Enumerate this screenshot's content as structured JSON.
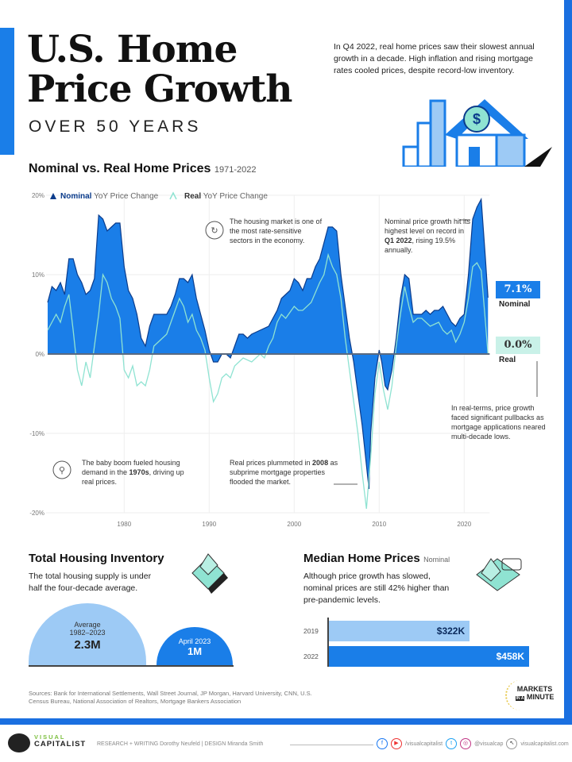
{
  "header": {
    "title_line1": "U.S. Home",
    "title_line2": "Price Growth",
    "subtitle": "OVER 50 YEARS",
    "intro": "In Q4 2022, real home prices saw their slowest annual growth in a decade. High inflation and rising mortgage rates cooled prices, despite record-low inventory."
  },
  "chart_data": {
    "type": "area",
    "title": "Nominal vs. Real Home Prices",
    "subtitle": "1971-2022",
    "xlabel": "",
    "ylabel": "",
    "xlim": [
      1971,
      2023
    ],
    "ylim": [
      -20,
      20
    ],
    "x_ticks": [
      "1980",
      "1990",
      "2000",
      "2010",
      "2020"
    ],
    "y_ticks": [
      "20%",
      "10%",
      "0%",
      "-10%",
      "-20%"
    ],
    "grid": true,
    "legend": [
      {
        "bold": "Nominal",
        "rest": "YoY Price Change"
      },
      {
        "bold": "Real",
        "rest": "YoY Price Change"
      }
    ],
    "legend_position": "top-left",
    "colors": {
      "nominal": "#1a7ee8",
      "nominal_outline": "#0b3c8c",
      "real": "#8fe3d2"
    },
    "series": [
      {
        "name": "Nominal",
        "points": [
          [
            1971,
            6.5
          ],
          [
            1971.5,
            8.5
          ],
          [
            1972,
            8
          ],
          [
            1972.5,
            9
          ],
          [
            1973,
            7.5
          ],
          [
            1973.5,
            12
          ],
          [
            1974,
            12
          ],
          [
            1974.5,
            10
          ],
          [
            1975,
            9
          ],
          [
            1975.5,
            7.5
          ],
          [
            1976,
            8
          ],
          [
            1976.5,
            9.5
          ],
          [
            1977,
            17.5
          ],
          [
            1977.5,
            17
          ],
          [
            1978,
            15.5
          ],
          [
            1978.5,
            16
          ],
          [
            1979,
            16.5
          ],
          [
            1979.5,
            16.5
          ],
          [
            1980,
            11
          ],
          [
            1980.5,
            8
          ],
          [
            1981,
            7
          ],
          [
            1981.5,
            5
          ],
          [
            1982,
            2
          ],
          [
            1982.5,
            1
          ],
          [
            1983,
            3.5
          ],
          [
            1983.5,
            5
          ],
          [
            1984,
            5
          ],
          [
            1985,
            5
          ],
          [
            1985.5,
            6
          ],
          [
            1986,
            7.5
          ],
          [
            1986.5,
            9.5
          ],
          [
            1987,
            9.5
          ],
          [
            1987.5,
            9
          ],
          [
            1988,
            10
          ],
          [
            1988.5,
            7
          ],
          [
            1989,
            5
          ],
          [
            1989.5,
            3
          ],
          [
            1990,
            0.5
          ],
          [
            1990.5,
            -1
          ],
          [
            1991,
            -1
          ],
          [
            1991.5,
            0
          ],
          [
            1992,
            0
          ],
          [
            1992.5,
            -0.5
          ],
          [
            1993,
            1
          ],
          [
            1993.5,
            2.5
          ],
          [
            1994,
            2.5
          ],
          [
            1994.5,
            2
          ],
          [
            1995,
            2.5
          ],
          [
            1996,
            3
          ],
          [
            1997,
            3.5
          ],
          [
            1997.5,
            4.5
          ],
          [
            1998,
            5.5
          ],
          [
            1998.5,
            7
          ],
          [
            1999,
            7.5
          ],
          [
            1999.5,
            8
          ],
          [
            2000,
            9.5
          ],
          [
            2000.5,
            9
          ],
          [
            2001,
            8
          ],
          [
            2001.5,
            9.5
          ],
          [
            2002,
            9.5
          ],
          [
            2002.5,
            11
          ],
          [
            2003,
            12
          ],
          [
            2003.5,
            14
          ],
          [
            2004,
            16
          ],
          [
            2004.5,
            16
          ],
          [
            2005,
            15.5
          ],
          [
            2005.5,
            10
          ],
          [
            2006,
            6
          ],
          [
            2006.5,
            2
          ],
          [
            2007,
            -1
          ],
          [
            2007.5,
            -5
          ],
          [
            2008,
            -9
          ],
          [
            2008.5,
            -14
          ],
          [
            2008.8,
            -17
          ],
          [
            2009,
            -10
          ],
          [
            2009.5,
            -3
          ],
          [
            2010,
            0.5
          ],
          [
            2010.3,
            -1
          ],
          [
            2010.7,
            -4
          ],
          [
            2011,
            -4.5
          ],
          [
            2011.5,
            -2
          ],
          [
            2012,
            2
          ],
          [
            2012.5,
            7
          ],
          [
            2013,
            10
          ],
          [
            2013.5,
            9.5
          ],
          [
            2014,
            5
          ],
          [
            2014.5,
            5
          ],
          [
            2015,
            5
          ],
          [
            2015.5,
            5.5
          ],
          [
            2016,
            5
          ],
          [
            2016.5,
            5.5
          ],
          [
            2017,
            5.5
          ],
          [
            2017.5,
            6
          ],
          [
            2018,
            5
          ],
          [
            2018.5,
            4
          ],
          [
            2019,
            3.5
          ],
          [
            2019.5,
            4.5
          ],
          [
            2020,
            5
          ],
          [
            2020.5,
            10
          ],
          [
            2021,
            17
          ],
          [
            2021.5,
            18.5
          ],
          [
            2022,
            19.5
          ],
          [
            2022.5,
            12
          ],
          [
            2022.8,
            7.1
          ]
        ]
      },
      {
        "name": "Real",
        "points": [
          [
            1971,
            3
          ],
          [
            1972,
            5
          ],
          [
            1972.5,
            4
          ],
          [
            1973,
            6
          ],
          [
            1973.5,
            7.5
          ],
          [
            1974,
            3
          ],
          [
            1974.5,
            -2
          ],
          [
            1975,
            -4
          ],
          [
            1975.5,
            -1
          ],
          [
            1976,
            -3
          ],
          [
            1977,
            5
          ],
          [
            1977.5,
            10
          ],
          [
            1978,
            9
          ],
          [
            1978.5,
            7
          ],
          [
            1979,
            6
          ],
          [
            1979.5,
            4.5
          ],
          [
            1980,
            -2
          ],
          [
            1980.5,
            -3
          ],
          [
            1981,
            -1.5
          ],
          [
            1981.5,
            -4
          ],
          [
            1982,
            -3.5
          ],
          [
            1982.5,
            -4
          ],
          [
            1983,
            -2
          ],
          [
            1983.5,
            1
          ],
          [
            1984,
            1.5
          ],
          [
            1984.5,
            2
          ],
          [
            1985,
            2.5
          ],
          [
            1986,
            5.5
          ],
          [
            1986.5,
            7
          ],
          [
            1987,
            6
          ],
          [
            1987.5,
            4
          ],
          [
            1988,
            5
          ],
          [
            1988.5,
            3
          ],
          [
            1989,
            2
          ],
          [
            1989.5,
            0.5
          ],
          [
            1990,
            -3
          ],
          [
            1990.5,
            -6
          ],
          [
            1991,
            -5
          ],
          [
            1991.5,
            -3
          ],
          [
            1992,
            -2.5
          ],
          [
            1992.5,
            -3
          ],
          [
            1993,
            -1.5
          ],
          [
            1994,
            -0.5
          ],
          [
            1995,
            -1
          ],
          [
            1996,
            0
          ],
          [
            1996.5,
            -0.5
          ],
          [
            1997,
            1
          ],
          [
            1997.5,
            2
          ],
          [
            1998,
            4
          ],
          [
            1998.5,
            5
          ],
          [
            1999,
            4.5
          ],
          [
            2000,
            6
          ],
          [
            2000.5,
            5.5
          ],
          [
            2001,
            5.5
          ],
          [
            2002,
            6.5
          ],
          [
            2003,
            9
          ],
          [
            2003.5,
            10
          ],
          [
            2004,
            12.5
          ],
          [
            2004.5,
            11
          ],
          [
            2005,
            10
          ],
          [
            2005.5,
            7
          ],
          [
            2006,
            2
          ],
          [
            2006.5,
            -2
          ],
          [
            2007,
            -6
          ],
          [
            2007.5,
            -10
          ],
          [
            2008,
            -15
          ],
          [
            2008.5,
            -19.5
          ],
          [
            2009,
            -13
          ],
          [
            2009.5,
            -5
          ],
          [
            2010,
            -1
          ],
          [
            2010.5,
            -4.5
          ],
          [
            2011,
            -7
          ],
          [
            2011.5,
            -4
          ],
          [
            2012,
            1
          ],
          [
            2012.5,
            5
          ],
          [
            2013,
            8.5
          ],
          [
            2013.5,
            6
          ],
          [
            2014,
            4
          ],
          [
            2014.5,
            4.5
          ],
          [
            2015,
            4.5
          ],
          [
            2015.5,
            4
          ],
          [
            2016,
            3.5
          ],
          [
            2017,
            4
          ],
          [
            2017.5,
            3
          ],
          [
            2018,
            2.5
          ],
          [
            2018.5,
            3
          ],
          [
            2019,
            1.5
          ],
          [
            2019.5,
            2.5
          ],
          [
            2020,
            4
          ],
          [
            2020.5,
            7
          ],
          [
            2021,
            11
          ],
          [
            2021.5,
            11.5
          ],
          [
            2022,
            10.5
          ],
          [
            2022.5,
            4
          ],
          [
            2022.8,
            0
          ]
        ]
      }
    ],
    "end_labels": {
      "nominal_value": "7.1%",
      "nominal_label": "Nominal",
      "real_value": "0.0%",
      "real_label": "Real"
    },
    "annotations": {
      "rate_sensitive": "The housing market is one of the most rate-sensitive sectors in the economy.",
      "peak_2022_pre": "Nominal price growth hit its highest level on record in ",
      "peak_2022_bold": "Q1 2022",
      "peak_2022_post": ", rising 19.5% annually.",
      "real_terms": "In real-terms, price growth faced significant pullbacks as mortgage applications neared multi-decade lows.",
      "baby_boom_pre": "The baby boom fueled housing demand in the ",
      "baby_boom_bold": "1970s",
      "baby_boom_post": ", driving up real prices.",
      "crash_2008_pre": "Real prices plummeted in ",
      "crash_2008_bold": "2008",
      "crash_2008_post": " as subprime mortgage properties flooded the market."
    }
  },
  "inventory": {
    "title": "Total Housing Inventory",
    "subtitle": "The total housing supply is under half the four-decade average.",
    "average_label": "Average",
    "average_period": "1982–2023",
    "average_value": "2.3M",
    "current_label": "April 2023",
    "current_value": "1M"
  },
  "median": {
    "title": "Median Home Prices",
    "title_note": "Nominal",
    "subtitle": "Although price growth has slowed, nominal prices are still 42% higher than pre-pandemic levels.",
    "bars": [
      {
        "year": "2019",
        "label": "$322K",
        "value": 322
      },
      {
        "year": "2022",
        "label": "$458K",
        "value": 458
      }
    ]
  },
  "sources": "Sources: Bank for International Settlements, Wall Street Journal, JP Morgan, Harvard University, CNN, U.S. Census Bureau, National Association of Realtors, Mortgage Bankers Association",
  "badge": {
    "line1": "MARKETS",
    "line2_small": "IN A",
    "line2": "MINUTE"
  },
  "footer": {
    "brand_top": "VISUAL",
    "brand_bottom": "CAPITALIST",
    "credits": "RESEARCH + WRITING Dorothy Neufeld  |  DESIGN Miranda Smith",
    "social1": "/visualcapitalist",
    "social2": "@visualcap",
    "website": "visualcapitalist.com"
  }
}
